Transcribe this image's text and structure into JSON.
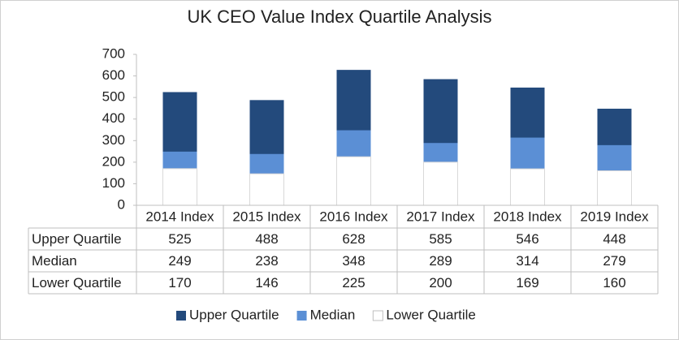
{
  "chart_data": {
    "type": "bar",
    "title": "UK CEO Value Index Quartile Analysis",
    "categories": [
      "2014 Index",
      "2015 Index",
      "2016 Index",
      "2017 Index",
      "2018 Index",
      "2019 Index"
    ],
    "series": [
      {
        "name": "Upper Quartile",
        "color": "#234a7c",
        "values": [
          525,
          488,
          628,
          585,
          546,
          448
        ]
      },
      {
        "name": "Median",
        "color": "#5b8fd5",
        "values": [
          249,
          238,
          348,
          289,
          314,
          279
        ]
      },
      {
        "name": "Lower Quartile",
        "color": "#ffffff",
        "values": [
          170,
          146,
          225,
          200,
          169,
          160
        ]
      }
    ],
    "ylim": [
      0,
      700
    ],
    "yticks": [
      0,
      100,
      200,
      300,
      400,
      500,
      600,
      700
    ],
    "legend": "bottom",
    "data_table": true
  }
}
